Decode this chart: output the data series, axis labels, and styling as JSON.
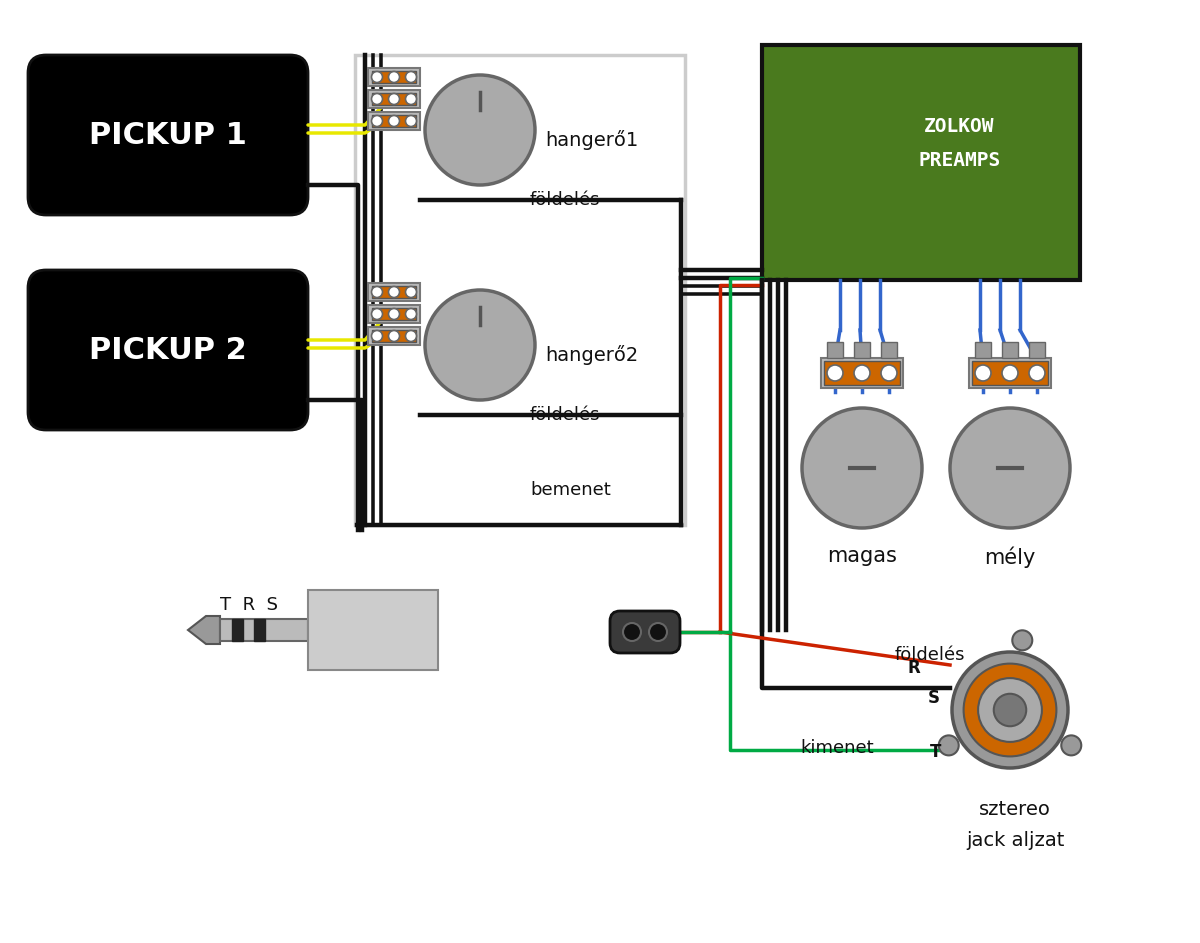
{
  "bg_color": "#ffffff",
  "wire_yellow": "#e8e800",
  "wire_black": "#111111",
  "wire_red": "#cc2200",
  "wire_green": "#00aa44",
  "wire_blue": "#3366cc",
  "wire_white_gray": "#cccccc",
  "pot_gray": "#aaaaaa",
  "pot_orange": "#cc6600",
  "pot_dark": "#666666",
  "preamp_green": "#4a7a1e",
  "preamp_border": "#111111",
  "label_color": "#111111",
  "pickup1_label": "PICKUP 1",
  "pickup2_label": "PICKUP 2",
  "preamp_label": "ZOLKOW\nPREAMPS",
  "hangero1_label": "hangerő1",
  "hangero2_label": "hangerő2",
  "foldeles_label": "földelés",
  "bemenet_label": "bemenet",
  "magas_label": "magas",
  "mely_label": "mély",
  "kimenet_label": "kimenet",
  "foldeles_jack_label": "földelés",
  "sztereo_label": "sztereo\njack aljzat",
  "R_label": "R",
  "S_label": "S",
  "T_label": "T",
  "TRS_label": "T  R  S"
}
